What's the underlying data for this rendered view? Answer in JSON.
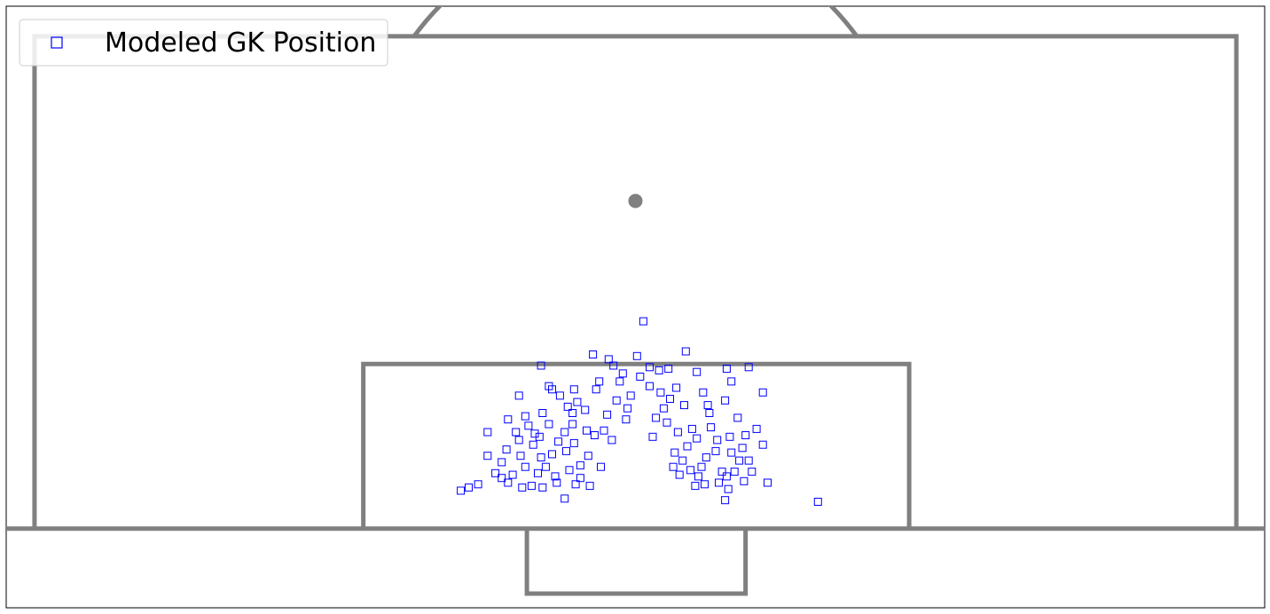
{
  "chart_data": {
    "type": "scatter",
    "title": "",
    "xlabel": "",
    "ylabel": "",
    "xlim": [
      -40,
      40
    ],
    "ylim": [
      -5,
      33
    ],
    "grid": false,
    "legend": {
      "placement": "top-left",
      "entries": [
        "Modeled GK Position"
      ]
    },
    "marker": {
      "shape": "open-square",
      "color": "#0000ff"
    },
    "pitch": {
      "line_color": "#808080",
      "penalty_spot": [
        0,
        20.7
      ],
      "penalty_area": {
        "x": [
          -38.2,
          38.2
        ],
        "y": [
          0,
          31.1
        ]
      },
      "goal_area": {
        "x": [
          -17.3,
          17.4
        ],
        "y": [
          0,
          10.4
        ]
      },
      "goal": {
        "x": [
          -6.9,
          7
        ],
        "y": [
          -4.1,
          0
        ]
      },
      "penalty_arc_center": [
        0,
        20.7
      ],
      "penalty_arc_radius": 17.5
    },
    "series": [
      {
        "name": "Modeled GK Position",
        "points": [
          [
            0.5,
            13.1
          ],
          [
            -2.7,
            11.0
          ],
          [
            3.2,
            11.2
          ],
          [
            5.9,
            2.5
          ],
          [
            -8.5,
            3.2
          ],
          [
            -7.6,
            6.1
          ],
          [
            -4.8,
            8.4
          ],
          [
            -4.0,
            7.3
          ],
          [
            6.5,
            7.0
          ],
          [
            5.7,
            8.1
          ],
          [
            -2.9,
            2.7
          ],
          [
            -8.2,
            5.0
          ],
          [
            -7.8,
            3.4
          ],
          [
            -5.9,
            2.6
          ],
          [
            -3.5,
            4.0
          ],
          [
            2.5,
            4.8
          ],
          [
            -1.2,
            8.1
          ],
          [
            -0.6,
            6.9
          ],
          [
            1.3,
            7.0
          ],
          [
            -6.2,
            3.5
          ],
          [
            6.6,
            4.3
          ],
          [
            8.1,
            5.3
          ],
          [
            -7.3,
            4.6
          ],
          [
            -3.9,
            5.4
          ],
          [
            -3.1,
            6.2
          ],
          [
            1.1,
            5.8
          ],
          [
            3.0,
            4.3
          ],
          [
            3.6,
            6.3
          ],
          [
            5.2,
            5.6
          ],
          [
            -6.5,
            5.3
          ],
          [
            -1.5,
            5.6
          ],
          [
            4.0,
            3.3
          ],
          [
            -8.9,
            3.5
          ],
          [
            -5.5,
            6.6
          ],
          [
            -4.5,
            6.1
          ],
          [
            2.0,
            6.7
          ],
          [
            4.7,
            7.3
          ],
          [
            -6.6,
            2.7
          ],
          [
            -5.0,
            2.9
          ],
          [
            -2.2,
            3.9
          ],
          [
            4.4,
            2.8
          ],
          [
            5.5,
            3.6
          ],
          [
            6.9,
            3.0
          ],
          [
            -7.0,
            3.9
          ],
          [
            -6.0,
            4.5
          ],
          [
            -3.5,
            3.2
          ],
          [
            3.5,
            3.7
          ],
          [
            6.1,
            4.8
          ],
          [
            7.0,
            5.9
          ],
          [
            -2.5,
            8.8
          ],
          [
            -1.0,
            9.3
          ],
          [
            -0.3,
            8.4
          ],
          [
            0.9,
            9.0
          ],
          [
            -5.3,
            4.7
          ],
          [
            -4.2,
            3.7
          ],
          [
            -2.0,
            6.2
          ],
          [
            2.4,
            3.9
          ],
          [
            3.3,
            5.2
          ],
          [
            4.5,
            4.5
          ],
          [
            5.3,
            2.9
          ],
          [
            -6.8,
            6.5
          ],
          [
            -3.7,
            8.0
          ],
          [
            2.2,
            8.2
          ],
          [
            4.8,
            6.4
          ],
          [
            -7.4,
            5.6
          ],
          [
            -5.7,
            3.9
          ],
          [
            -4.4,
            4.9
          ],
          [
            3.8,
            2.7
          ],
          [
            5.1,
            4.9
          ],
          [
            6.3,
            3.6
          ],
          [
            7.2,
            4.3
          ],
          [
            -5.9,
            7.3
          ],
          [
            -3.2,
            7.5
          ],
          [
            1.6,
            8.6
          ],
          [
            3.1,
            7.8
          ],
          [
            -8.1,
            2.9
          ],
          [
            -7.2,
            2.6
          ],
          [
            -4.9,
            5.5
          ],
          [
            -3.0,
            4.6
          ],
          [
            2.8,
            3.4
          ],
          [
            4.2,
            3.9
          ],
          [
            6.0,
            5.8
          ],
          [
            -2.6,
            5.9
          ],
          [
            -1.8,
            7.2
          ],
          [
            1.8,
            7.6
          ],
          [
            2.7,
            6.1
          ],
          [
            -6.4,
            6.0
          ],
          [
            -5.1,
            3.3
          ],
          [
            -3.8,
            2.8
          ],
          [
            3.9,
            5.7
          ],
          [
            5.8,
            3.3
          ],
          [
            6.8,
            5.1
          ],
          [
            -0.8,
            9.8
          ],
          [
            0.3,
            9.6
          ],
          [
            -2.3,
            9.3
          ],
          [
            1.5,
            10.0
          ],
          [
            -9.4,
            4.6
          ],
          [
            -10.6,
            2.6
          ],
          [
            -10.0,
            2.8
          ],
          [
            -11.1,
            2.4
          ],
          [
            11.6,
            1.7
          ],
          [
            5.7,
            1.8
          ],
          [
            -4.5,
            1.9
          ],
          [
            -9.4,
            6.1
          ],
          [
            -6.0,
            10.3
          ],
          [
            -5.3,
            8.8
          ],
          [
            -7.4,
            8.4
          ],
          [
            8.1,
            8.6
          ],
          [
            7.2,
            10.2
          ],
          [
            6.1,
            9.3
          ],
          [
            5.8,
            10.1
          ],
          [
            -5.5,
            9.0
          ],
          [
            -3.9,
            8.8
          ],
          [
            2.1,
            10.1
          ],
          [
            3.9,
            9.9
          ],
          [
            4.6,
            7.8
          ],
          [
            -8.1,
            6.9
          ],
          [
            -7.0,
            7.1
          ],
          [
            -1.4,
            10.3
          ],
          [
            0.9,
            10.2
          ],
          [
            7.7,
            6.3
          ],
          [
            8.4,
            2.9
          ],
          [
            7.4,
            3.6
          ],
          [
            -8.5,
            4.2
          ],
          [
            -6.1,
            5.8
          ],
          [
            -4.0,
            6.6
          ],
          [
            -0.5,
            7.6
          ],
          [
            0.1,
            10.9
          ],
          [
            -1.7,
            10.7
          ],
          [
            2.6,
            8.9
          ],
          [
            4.3,
            8.6
          ],
          [
            -4.3,
            7.7
          ]
        ]
      }
    ]
  }
}
